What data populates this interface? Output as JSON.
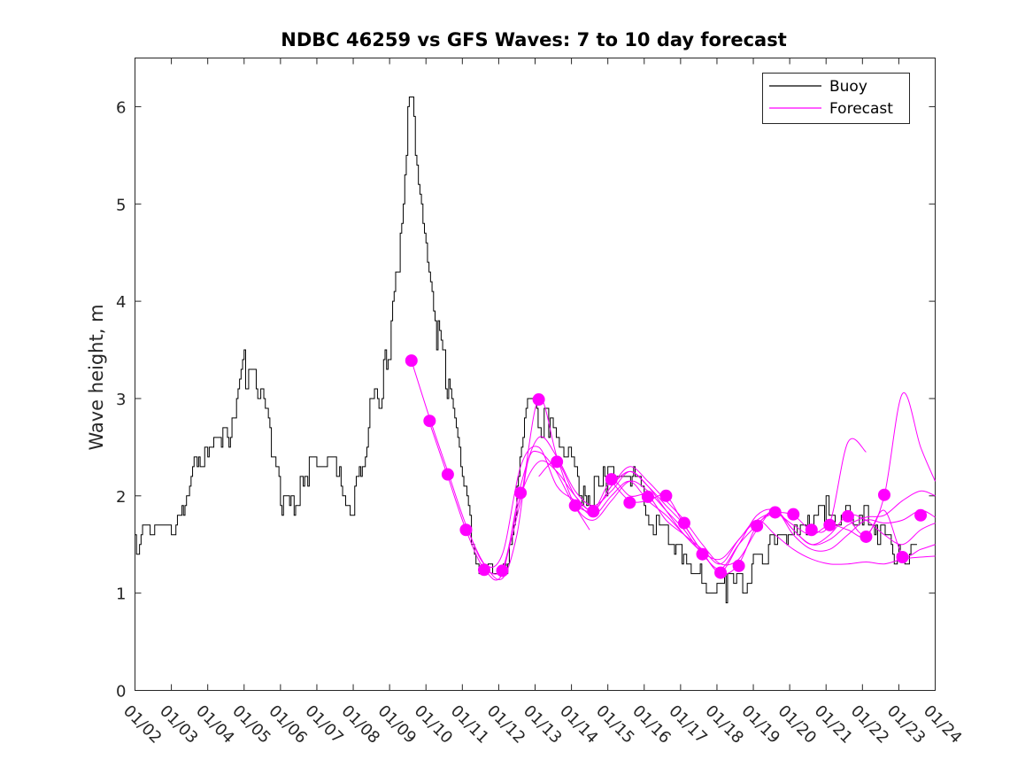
{
  "chart_data": {
    "type": "line",
    "title": "NDBC 46259 vs GFS Waves: 7 to 10 day forecast",
    "xlabel": "",
    "ylabel": "Wave height, m",
    "x_unit": "days since 01/02",
    "xlim": [
      0,
      22
    ],
    "ylim": [
      0,
      6.5
    ],
    "yticks": [
      0,
      1,
      2,
      3,
      4,
      5,
      6
    ],
    "xticks": [
      {
        "x": 0,
        "label": "01/02"
      },
      {
        "x": 1,
        "label": "01/03"
      },
      {
        "x": 2,
        "label": "01/04"
      },
      {
        "x": 3,
        "label": "01/05"
      },
      {
        "x": 4,
        "label": "01/06"
      },
      {
        "x": 5,
        "label": "01/07"
      },
      {
        "x": 6,
        "label": "01/08"
      },
      {
        "x": 7,
        "label": "01/09"
      },
      {
        "x": 8,
        "label": "01/10"
      },
      {
        "x": 9,
        "label": "01/11"
      },
      {
        "x": 10,
        "label": "01/12"
      },
      {
        "x": 11,
        "label": "01/13"
      },
      {
        "x": 12,
        "label": "01/14"
      },
      {
        "x": 13,
        "label": "01/15"
      },
      {
        "x": 14,
        "label": "01/16"
      },
      {
        "x": 15,
        "label": "01/17"
      },
      {
        "x": 16,
        "label": "01/18"
      },
      {
        "x": 17,
        "label": "01/19"
      },
      {
        "x": 18,
        "label": "01/20"
      },
      {
        "x": 19,
        "label": "01/21"
      },
      {
        "x": 20,
        "label": "01/22"
      },
      {
        "x": 21,
        "label": "01/23"
      },
      {
        "x": 22,
        "label": "01/24"
      }
    ],
    "grid": false,
    "legend": {
      "position": "top-right",
      "entries": [
        {
          "name": "Buoy",
          "color": "#000000"
        },
        {
          "name": "Forecast",
          "color": "#ff00ff"
        }
      ]
    },
    "series": [
      {
        "name": "Buoy",
        "color": "#000000",
        "x": [
          0,
          0.25,
          0.5,
          0.75,
          1,
          1.25,
          1.5,
          1.75,
          2,
          2.25,
          2.5,
          2.75,
          3,
          3.25,
          3.5,
          3.75,
          4,
          4.25,
          4.5,
          4.75,
          5,
          5.25,
          5.5,
          5.75,
          6,
          6.25,
          6.5,
          6.75,
          7,
          7.25,
          7.4,
          7.5,
          7.6,
          7.75,
          8,
          8.25,
          8.5,
          8.75,
          9,
          9.25,
          9.5,
          9.75,
          10,
          10.25,
          10.5,
          10.75,
          11,
          11.25,
          11.5,
          11.75,
          12,
          12.25,
          12.5,
          12.75,
          13,
          13.25,
          13.5,
          13.75,
          14,
          14.25,
          14.5,
          14.75,
          15,
          15.25,
          15.5,
          15.75,
          16,
          16.25,
          16.5,
          16.75,
          17,
          17.25,
          17.5,
          17.75,
          18,
          18.25,
          18.5,
          18.75,
          19,
          19.25,
          19.5,
          19.75,
          20,
          20.25,
          20.5,
          20.75,
          21,
          21.25,
          21.5
        ],
        "values": [
          1.5,
          1.6,
          1.65,
          1.7,
          1.65,
          1.7,
          2.2,
          2.4,
          2.3,
          2.5,
          2.6,
          2.8,
          3.3,
          3.2,
          2.9,
          2.5,
          2.0,
          1.8,
          2.0,
          2.2,
          2.3,
          2.35,
          2.3,
          2.1,
          1.9,
          2.4,
          3.0,
          3.0,
          3.6,
          4.5,
          5.3,
          5.8,
          6.0,
          5.4,
          4.6,
          3.8,
          3.3,
          2.7,
          2.2,
          1.6,
          1.3,
          1.25,
          1.2,
          1.4,
          2.0,
          2.8,
          2.9,
          2.7,
          2.8,
          2.6,
          2.4,
          2.1,
          2.0,
          2.1,
          2.2,
          2.25,
          2.3,
          2.1,
          2.0,
          1.8,
          1.7,
          1.55,
          1.45,
          1.35,
          1.25,
          1.1,
          1.05,
          1.05,
          1.1,
          1.15,
          1.3,
          1.4,
          1.5,
          1.6,
          1.65,
          1.6,
          1.7,
          1.75,
          1.85,
          1.8,
          1.75,
          1.7,
          1.8,
          1.7,
          1.55,
          1.5,
          1.45,
          1.4,
          1.55
        ]
      },
      {
        "name": "Forecast",
        "color": "#ff00ff",
        "runs": [
          {
            "x": [
              7.6,
              8.1,
              8.6,
              9.1,
              9.6,
              10.1,
              10.5,
              10.8,
              11.1,
              11.5,
              12.0,
              12.5
            ],
            "values": [
              3.39,
              2.8,
              2.25,
              1.7,
              1.3,
              1.15,
              1.6,
              2.35,
              2.45,
              2.3,
              1.95,
              1.65
            ]
          },
          {
            "x": [
              8.1,
              8.6,
              9.1,
              9.6,
              10.1,
              10.6,
              11.1,
              11.6,
              12.1,
              12.6,
              13.1,
              13.6,
              14.1,
              14.6,
              15.1,
              15.6
            ],
            "values": [
              2.75,
              2.2,
              1.65,
              1.25,
              1.2,
              2.1,
              2.6,
              2.4,
              2.05,
              1.9,
              2.05,
              2.25,
              2.1,
              1.85,
              1.6,
              1.42
            ]
          },
          {
            "x": [
              9.1,
              9.6,
              10.1,
              10.6,
              11.1,
              11.6,
              12.1,
              12.6,
              13.1,
              13.6,
              14.1,
              14.6,
              15.1,
              15.6,
              16.1,
              16.6,
              17.1,
              17.6,
              18.1,
              18.6,
              19.1,
              19.6,
              20.1,
              20.6,
              21.1,
              21.6,
              22.0
            ],
            "values": [
              1.7,
              1.3,
              1.4,
              2.3,
              2.5,
              2.1,
              1.95,
              1.8,
              2.0,
              2.15,
              1.95,
              1.8,
              1.6,
              1.42,
              1.35,
              1.55,
              1.75,
              1.6,
              1.45,
              1.35,
              1.3,
              1.3,
              1.32,
              1.3,
              1.35,
              1.37,
              1.38
            ]
          },
          {
            "x": [
              9.6,
              10.1,
              10.6,
              11.1,
              11.6,
              12.1,
              12.6,
              13.1,
              13.6,
              14.1,
              14.6,
              15.1,
              15.6,
              16.1,
              16.6,
              17.1,
              17.6,
              18.1,
              18.6,
              19.1,
              19.6,
              20.1,
              20.6,
              21.1,
              21.6,
              22.0
            ],
            "values": [
              1.25,
              1.25,
              2.0,
              2.35,
              2.25,
              2.0,
              1.85,
              2.1,
              2.3,
              2.15,
              1.95,
              1.75,
              1.5,
              1.3,
              1.35,
              1.65,
              1.85,
              1.6,
              1.45,
              1.45,
              1.6,
              1.75,
              1.72,
              1.75,
              1.85,
              1.78
            ]
          },
          {
            "x": [
              10.1,
              10.6,
              11.1,
              11.6,
              12.1,
              12.6,
              13.1,
              13.6,
              14.1,
              14.6,
              15.1,
              15.6,
              16.1,
              16.6,
              17.1,
              17.6,
              18.1,
              18.6,
              19.1,
              19.6,
              20.1,
              20.6,
              21.1,
              21.6,
              22.0
            ],
            "values": [
              1.2,
              1.95,
              3.0,
              2.4,
              1.9,
              1.75,
              1.95,
              2.15,
              2.05,
              1.85,
              1.65,
              1.4,
              1.25,
              1.5,
              1.7,
              1.85,
              1.65,
              1.5,
              1.55,
              1.7,
              1.78,
              1.8,
              1.95,
              2.05,
              2.0
            ]
          },
          {
            "x": [
              11.1,
              11.6,
              12.1,
              12.6,
              13.1,
              13.6,
              14.1,
              14.6,
              15.1,
              15.6,
              16.1,
              16.6,
              17.1,
              17.6,
              18.1,
              18.6,
              19.1,
              19.6,
              20.1,
              20.6,
              21.1,
              21.6,
              22.0
            ],
            "values": [
              2.2,
              2.35,
              2.0,
              1.85,
              2.1,
              2.25,
              2.1,
              1.9,
              1.7,
              1.42,
              1.22,
              1.5,
              1.8,
              1.85,
              1.65,
              1.5,
              1.6,
              1.8,
              1.75,
              1.6,
              1.5,
              1.65,
              1.72
            ]
          },
          {
            "x": [
              12.1,
              12.6,
              13.1,
              13.6,
              14.1,
              14.6,
              15.1,
              15.6,
              16.1,
              16.6,
              17.1,
              17.6,
              18.1,
              18.6,
              19.1,
              19.6,
              20.1,
              20.6,
              21.1,
              21.6,
              22.0
            ],
            "values": [
              1.9,
              1.85,
              2.15,
              2.0,
              2.0,
              1.75,
              1.6,
              1.45,
              1.3,
              1.55,
              1.75,
              1.82,
              1.7,
              1.6,
              1.7,
              1.65,
              1.58,
              1.85,
              1.4,
              1.45,
              1.5
            ]
          },
          {
            "x": [
              13.1,
              13.6,
              14.1,
              14.6,
              15.1,
              15.6,
              16.1,
              16.6,
              17.1,
              17.6,
              18.1,
              18.6,
              19.1,
              19.6,
              20.1
            ],
            "values": [
              2.15,
              1.95,
              1.95,
              2.0,
              1.7,
              1.42,
              1.2,
              1.3,
              1.7,
              1.82,
              1.8,
              1.65,
              1.72,
              2.55,
              2.45
            ]
          },
          {
            "x": [
              19.6,
              20.1,
              20.6,
              21.1,
              21.6,
              22.0
            ],
            "values": [
              1.78,
              1.6,
              2.0,
              3.05,
              2.5,
              2.15
            ]
          }
        ],
        "markers": {
          "x": [
            7.6,
            8.1,
            8.6,
            9.1,
            9.6,
            10.1,
            10.6,
            11.1,
            11.6,
            12.1,
            12.6,
            13.1,
            13.6,
            14.1,
            14.6,
            15.1,
            15.6,
            16.1,
            16.6,
            17.1,
            17.6,
            18.1,
            18.6,
            19.1,
            19.6,
            20.1,
            20.6,
            21.1,
            21.6
          ],
          "values": [
            3.39,
            2.77,
            2.22,
            1.65,
            1.24,
            1.23,
            2.03,
            2.99,
            2.35,
            1.9,
            1.84,
            2.17,
            1.93,
            1.99,
            2.0,
            1.72,
            1.4,
            1.21,
            1.28,
            1.69,
            1.83,
            1.81,
            1.65,
            1.7,
            1.79,
            1.58,
            2.01,
            1.37,
            1.8
          ]
        }
      }
    ]
  }
}
